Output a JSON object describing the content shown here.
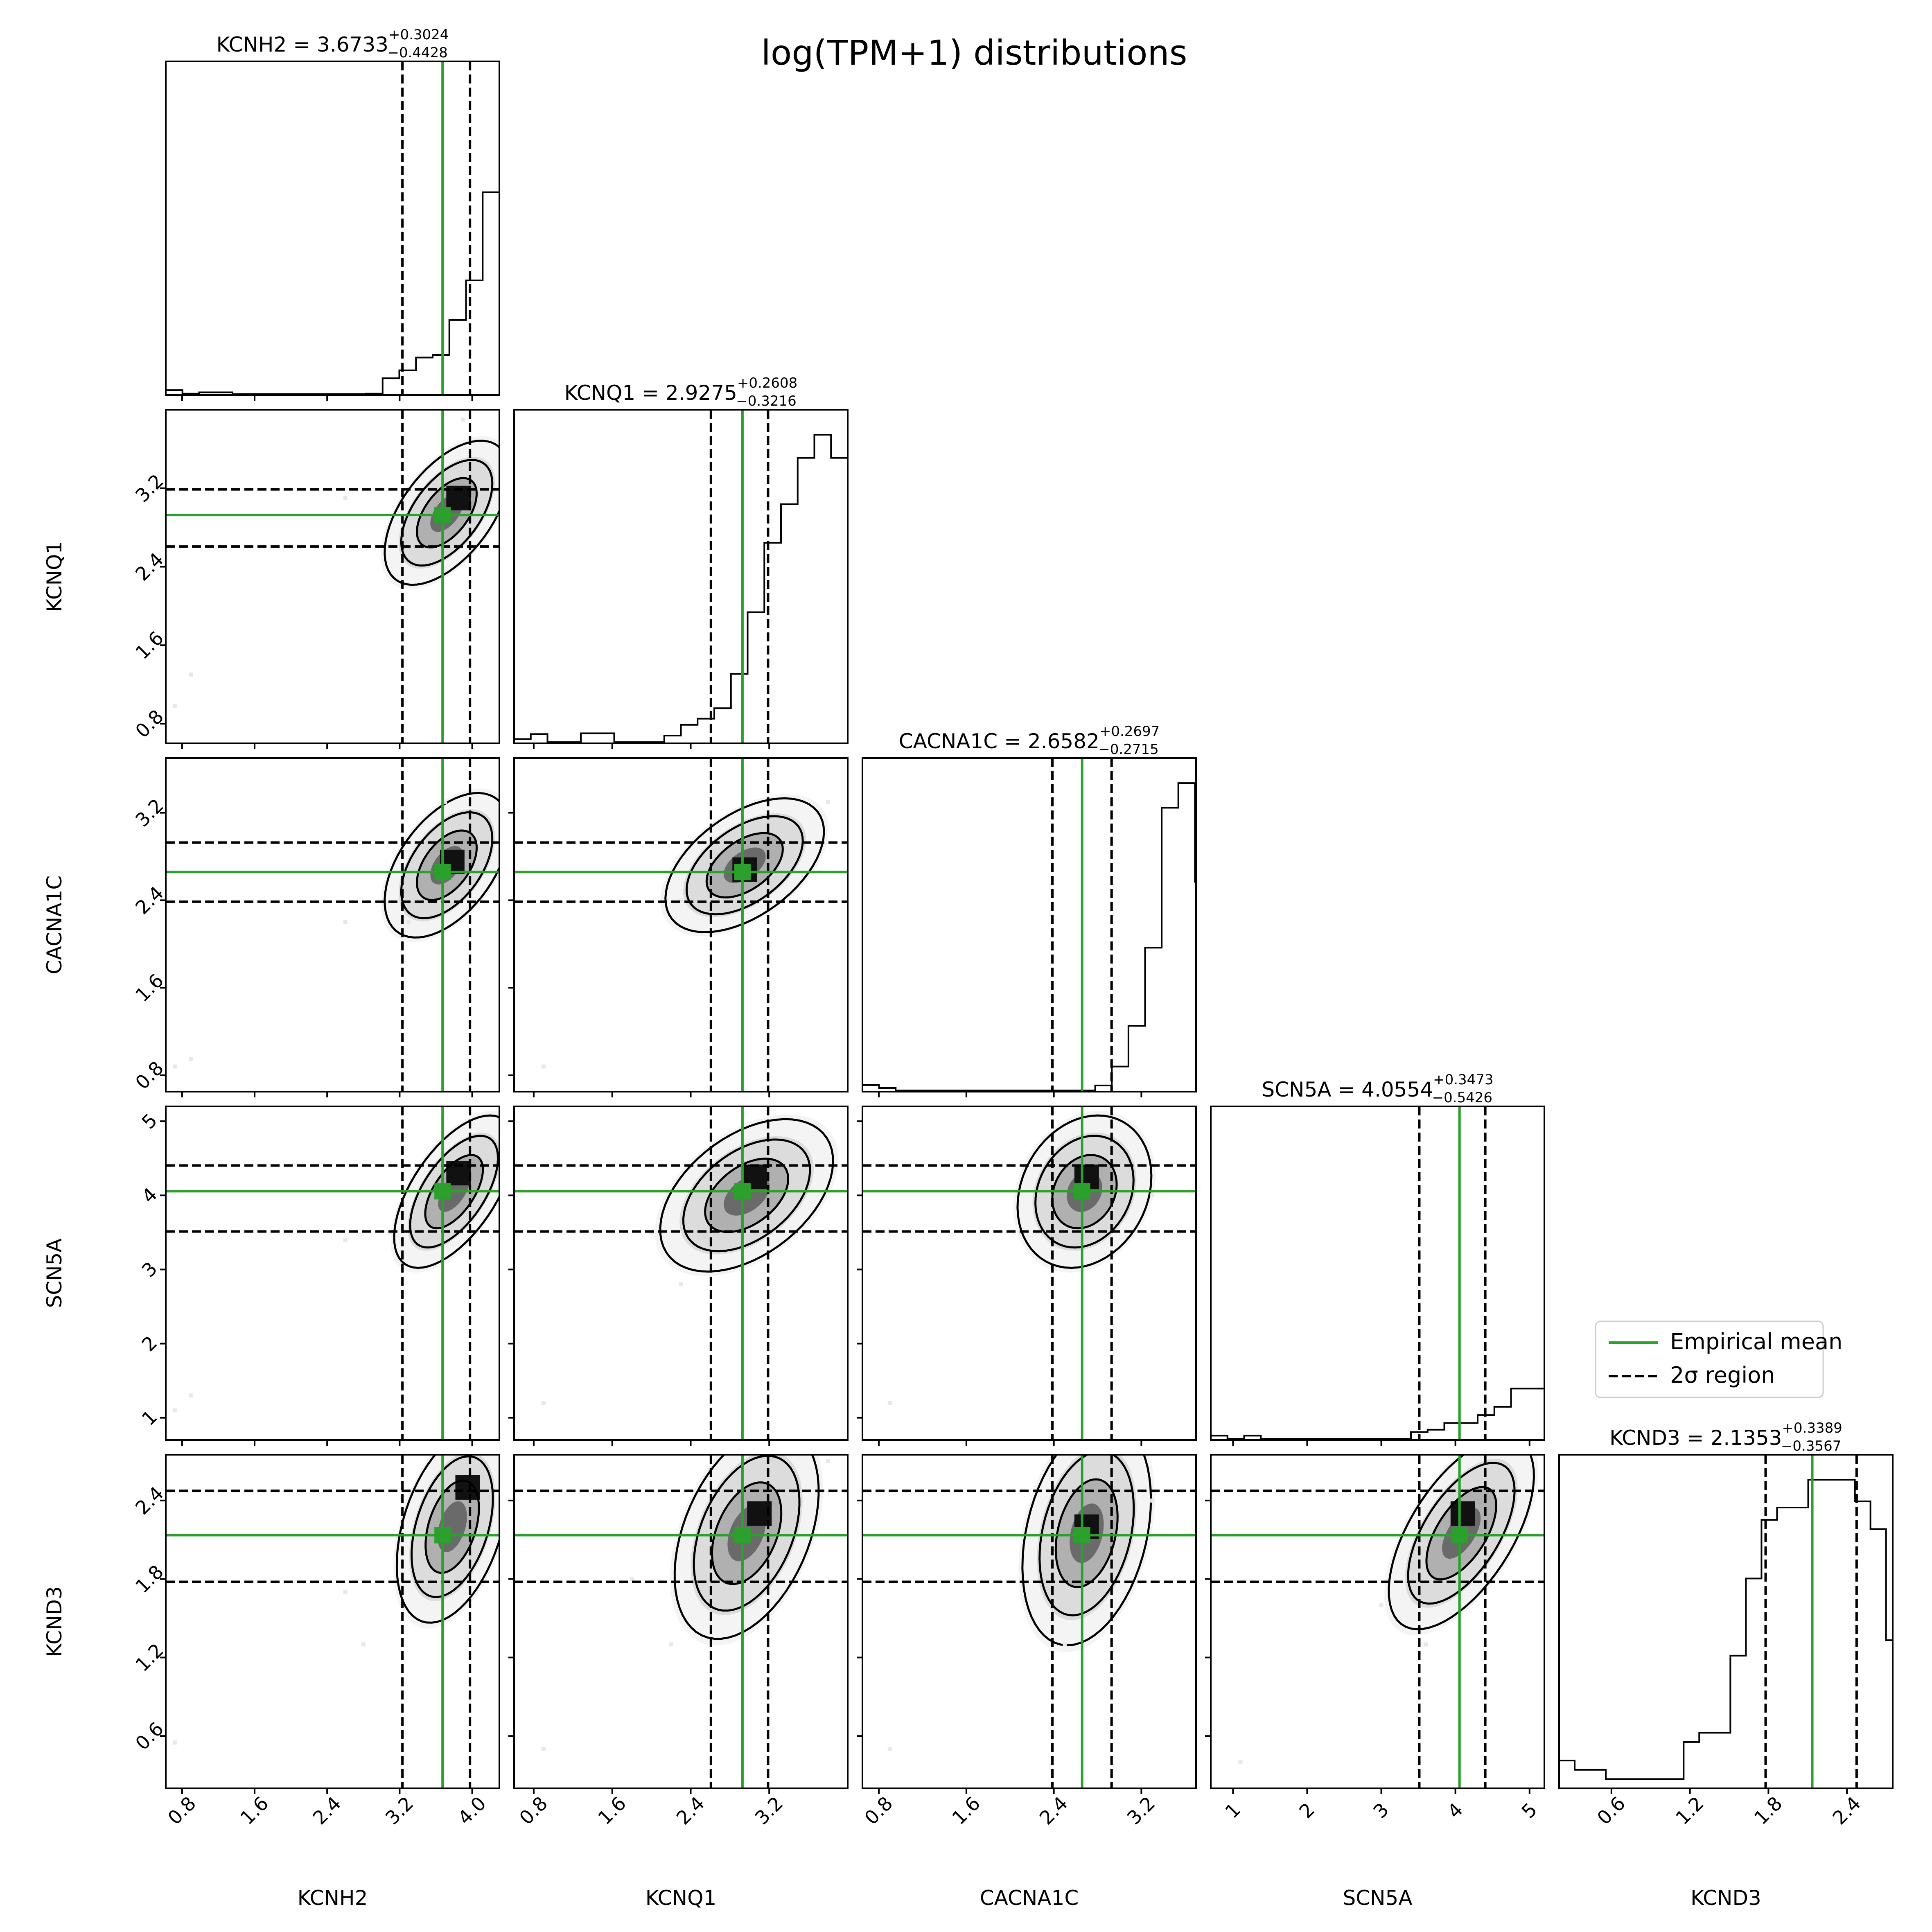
{
  "figure": {
    "title": "log(TPM+1) distributions"
  },
  "legend": {
    "placement": "right of SCN5A histogram",
    "items": [
      {
        "label": "Empirical mean",
        "style": "solid",
        "color": "#2ca02c"
      },
      {
        "label": "2σ region",
        "style": "dashed",
        "color": "#000000"
      }
    ]
  },
  "colors": {
    "mean": "#2ca02c",
    "quantile": "#000000",
    "density": "#000000"
  },
  "chart_data": {
    "type": "corner",
    "variables": [
      {
        "name": "KCNH2",
        "mean": 3.6733,
        "plus": 0.3024,
        "minus": 0.4428,
        "range": [
          0.62,
          4.3
        ],
        "ticks": [
          0.8,
          1.6,
          2.4,
          3.2,
          4.0
        ],
        "tick_labels": [
          "0.8",
          "1.6",
          "2.4",
          "3.2",
          "4.0"
        ],
        "hist": {
          "start": 0.62,
          "width": 0.184,
          "counts": [
            1.1,
            0.3,
            0.6,
            0.6,
            0.2,
            0.2,
            0.2,
            0.2,
            0.2,
            0.2,
            0.2,
            0.2,
            0.3,
            3.8,
            5.6,
            8.5,
            9.1,
            17,
            26,
            46,
            64,
            70,
            62,
            49,
            15,
            2.5,
            2.5,
            4
          ]
        }
      },
      {
        "name": "KCNQ1",
        "mean": 2.9275,
        "plus": 0.2608,
        "minus": 0.3216,
        "range": [
          0.6,
          4.0
        ],
        "ticks": [
          0.8,
          1.6,
          2.4,
          3.2
        ],
        "tick_labels": [
          "0.8",
          "1.6",
          "2.4",
          "3.2"
        ],
        "hist": {
          "start": 0.6,
          "width": 0.17,
          "counts": [
            1.1,
            2.4,
            0.3,
            0.3,
            2.6,
            2.6,
            0.3,
            0.3,
            0.3,
            2,
            4.8,
            6.4,
            9.1,
            18,
            34,
            52,
            62,
            74,
            80,
            74,
            60,
            14,
            7.5,
            3.7,
            3.7
          ]
        }
      },
      {
        "name": "CACNA1C",
        "mean": 2.6582,
        "plus": 0.2697,
        "minus": 0.2715,
        "range": [
          0.65,
          3.7
        ],
        "ticks": [
          0.8,
          1.6,
          2.4,
          3.2
        ],
        "tick_labels": [
          "0.8",
          "1.6",
          "2.4",
          "3.2"
        ],
        "hist": {
          "start": 0.65,
          "width": 0.152,
          "counts": [
            1.6,
            0.9,
            0.3,
            0.3,
            0.3,
            0.3,
            0.3,
            0.3,
            0.3,
            0.3,
            0.3,
            0.3,
            0.3,
            0.3,
            1.5,
            6.1,
            16,
            35,
            69,
            75,
            51,
            26,
            19,
            6.6,
            2.9,
            0.4,
            0.8,
            0.4,
            0.4
          ]
        }
      },
      {
        "name": "SCN5A",
        "mean": 4.0554,
        "plus": 0.3473,
        "minus": 0.5426,
        "range": [
          0.7,
          5.2
        ],
        "ticks": [
          1,
          2,
          3,
          4,
          5
        ],
        "tick_labels": [
          "1",
          "2",
          "3",
          "4",
          "5"
        ],
        "hist": {
          "start": 0.7,
          "width": 0.225,
          "counts": [
            1.1,
            0.3,
            1.1,
            0.3,
            0.3,
            0.3,
            0.3,
            0.3,
            0.3,
            0.3,
            0.3,
            0.3,
            2,
            2.6,
            4.3,
            4.3,
            6.3,
            8.4,
            13,
            13,
            62,
            70,
            78,
            68,
            61,
            35,
            14,
            10,
            2.7,
            2
          ]
        }
      },
      {
        "name": "KCND3",
        "mean": 2.1353,
        "plus": 0.3389,
        "minus": 0.3567,
        "range": [
          0.2,
          2.75
        ],
        "ticks": [
          0.6,
          1.2,
          1.8,
          2.4
        ],
        "tick_labels": [
          "0.6",
          "1.2",
          "1.8",
          "2.4"
        ],
        "hist": {
          "start": 0.2,
          "width": 0.119,
          "counts": [
            0.9,
            0.6,
            0.6,
            0.3,
            0.3,
            0.3,
            0.3,
            0.3,
            1.5,
            1.8,
            1.8,
            4.3,
            6.8,
            8.7,
            9.1,
            9.1,
            10,
            10,
            10,
            9.3,
            8.4,
            4.8,
            2.1
          ]
        }
      }
    ],
    "pairs": [
      {
        "x": "KCNH2",
        "y": "KCNQ1",
        "cx": 3.72,
        "cy": 2.95,
        "sx": 0.28,
        "sy": 0.3,
        "rho": 0.55,
        "mode": [
          3.85,
          3.1
        ],
        "outliers": [
          [
            0.9,
            1.3
          ],
          [
            0.72,
            0.98
          ],
          [
            2.6,
            3.1
          ],
          [
            3.9,
            3.9
          ]
        ]
      },
      {
        "x": "KCNH2",
        "y": "CACNA1C",
        "cx": 3.72,
        "cy": 2.72,
        "sx": 0.28,
        "sy": 0.27,
        "rho": 0.5,
        "mode": [
          3.78,
          2.75
        ],
        "outliers": [
          [
            0.9,
            0.95
          ],
          [
            0.72,
            0.88
          ],
          [
            2.6,
            2.2
          ],
          [
            3.3,
            2.2
          ],
          [
            3.7,
            3.3
          ]
        ]
      },
      {
        "x": "KCNH2",
        "y": "SCN5A",
        "cx": 3.8,
        "cy": 4.05,
        "sx": 0.27,
        "sy": 0.42,
        "rho": 0.6,
        "mode": [
          3.85,
          4.3
        ],
        "outliers": [
          [
            0.9,
            1.3
          ],
          [
            0.72,
            1.1
          ],
          [
            2.6,
            3.4
          ],
          [
            3.1,
            3.5
          ]
        ]
      },
      {
        "x": "KCNH2",
        "y": "KCND3",
        "cx": 3.78,
        "cy": 2.2,
        "sx": 0.25,
        "sy": 0.3,
        "rho": 0.4,
        "mode": [
          3.95,
          2.5
        ],
        "outliers": [
          [
            0.72,
            0.55
          ],
          [
            2.6,
            1.7
          ],
          [
            2.8,
            1.3
          ]
        ]
      },
      {
        "x": "KCNQ1",
        "y": "CACNA1C",
        "cx": 2.95,
        "cy": 2.72,
        "sx": 0.33,
        "sy": 0.25,
        "rho": 0.5,
        "mode": [
          2.95,
          2.68
        ],
        "outliers": [
          [
            0.9,
            0.88
          ],
          [
            2.3,
            2.4
          ],
          [
            3.8,
            3.3
          ]
        ]
      },
      {
        "x": "KCNQ1",
        "y": "SCN5A",
        "cx": 2.97,
        "cy": 4.0,
        "sx": 0.36,
        "sy": 0.42,
        "rho": 0.45,
        "mode": [
          3.05,
          4.25
        ],
        "outliers": [
          [
            2.3,
            2.8
          ],
          [
            2.0,
            3.5
          ],
          [
            0.9,
            1.2
          ]
        ]
      },
      {
        "x": "KCNQ1",
        "y": "KCND3",
        "cx": 2.97,
        "cy": 2.15,
        "sx": 0.3,
        "sy": 0.33,
        "rho": 0.4,
        "mode": [
          3.1,
          2.3
        ],
        "outliers": [
          [
            1.8,
            1.8
          ],
          [
            2.2,
            1.3
          ],
          [
            3.8,
            2.7
          ],
          [
            0.9,
            0.5
          ]
        ]
      },
      {
        "x": "CACNA1C",
        "y": "SCN5A",
        "cx": 2.68,
        "cy": 4.05,
        "sx": 0.25,
        "sy": 0.42,
        "rho": 0.2,
        "mode": [
          2.7,
          4.25
        ],
        "outliers": [
          [
            2.25,
            3.5
          ],
          [
            0.9,
            1.2
          ],
          [
            3.3,
            4.0
          ]
        ]
      },
      {
        "x": "CACNA1C",
        "y": "KCND3",
        "cx": 2.7,
        "cy": 2.15,
        "sx": 0.24,
        "sy": 0.35,
        "rho": 0.3,
        "mode": [
          2.7,
          2.2
        ],
        "outliers": [
          [
            2.5,
            1.3
          ],
          [
            0.9,
            0.5
          ],
          [
            3.3,
            2.4
          ]
        ]
      },
      {
        "x": "SCN5A",
        "y": "KCND3",
        "cx": 4.08,
        "cy": 2.15,
        "sx": 0.4,
        "sy": 0.3,
        "rho": 0.6,
        "mode": [
          4.1,
          2.3
        ],
        "outliers": [
          [
            1.1,
            0.4
          ],
          [
            3.0,
            1.6
          ],
          [
            3.6,
            1.3
          ]
        ]
      }
    ]
  }
}
